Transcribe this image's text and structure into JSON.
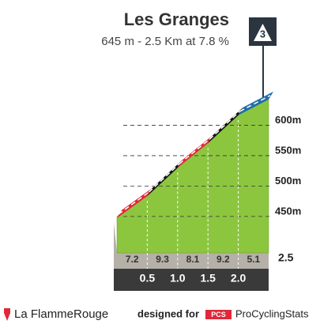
{
  "chart_data": {
    "type": "profile",
    "title": "Les Granges",
    "subtitle": "645 m - 2.5 Km at 7.8 %",
    "category": "3",
    "x": [
      0,
      0.5,
      1.0,
      1.5,
      2.0,
      2.5
    ],
    "values": [
      450,
      486,
      532.5,
      573,
      619,
      645
    ],
    "gradients": [
      7.2,
      9.3,
      8.1,
      9.2,
      5.1
    ],
    "segment_colors": [
      "#e0283a",
      "#111111",
      "#e0283a",
      "#111111",
      "#1f6fa8"
    ],
    "area_color": "#8cc63f",
    "xlim": [
      0,
      2.5
    ],
    "xticks": [
      0.5,
      {
        "value": 1,
        "label": "1.0"
      },
      1.5,
      {
        "value": 2,
        "label": "2.0"
      },
      2.5
    ],
    "ylim": [
      390,
      650
    ],
    "yticks": [
      {
        "value": 450,
        "label": "450m"
      },
      {
        "value": 500,
        "label": "500m"
      },
      {
        "value": 550,
        "label": "550m"
      },
      {
        "value": 600,
        "label": "600m"
      }
    ],
    "grid": true
  },
  "footer": {
    "brand": "La FlammeRouge",
    "designed_for": "designed for",
    "pcs": "PCS",
    "site": "ProCyclingStats"
  }
}
